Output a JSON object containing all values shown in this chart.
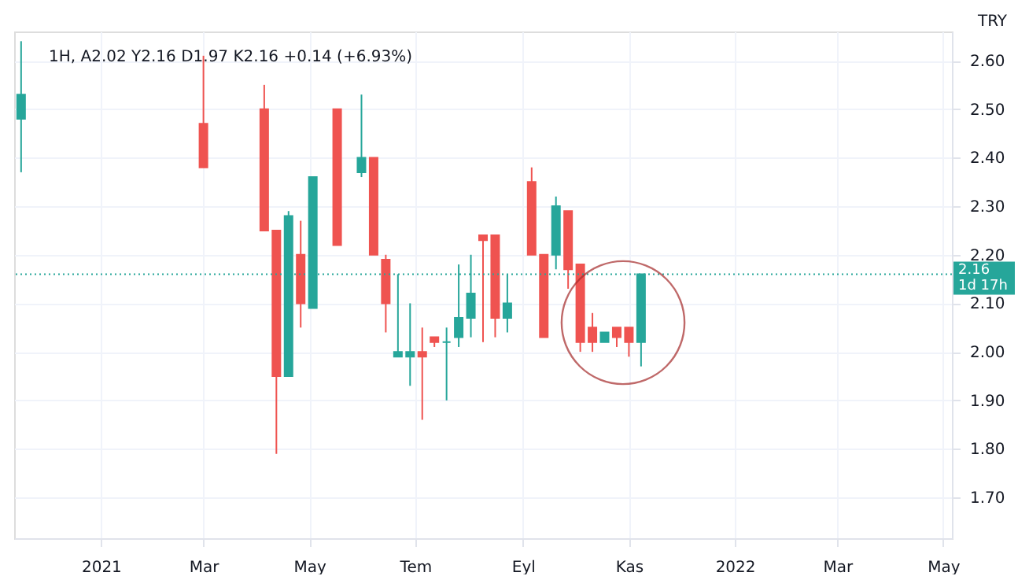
{
  "chart_data": {
    "type": "candlestick",
    "title": "1H, A2.02 Y2.16 D1.97 K2.16 +0.14 (+6.93%)",
    "ylabel": "TRY",
    "x": [
      "2020-11-16",
      "2021-03-01",
      "2021-04-05",
      "2021-04-12",
      "2021-04-19",
      "2021-04-26",
      "2021-05-03",
      "2021-05-17",
      "2021-05-31",
      "2021-06-07",
      "2021-06-14",
      "2021-06-21",
      "2021-06-28",
      "2021-07-05",
      "2021-07-12",
      "2021-07-19",
      "2021-07-26",
      "2021-08-02",
      "2021-08-09",
      "2021-08-16",
      "2021-08-23",
      "2021-09-06",
      "2021-09-13",
      "2021-09-20",
      "2021-09-27",
      "2021-10-04",
      "2021-10-11",
      "2021-10-18",
      "2021-10-25",
      "2021-11-01",
      "2021-11-08"
    ],
    "ohlc": [
      [
        2.48,
        2.64,
        2.37,
        2.53
      ],
      [
        2.47,
        2.61,
        2.38,
        2.38
      ],
      [
        2.5,
        2.55,
        2.25,
        2.25
      ],
      [
        2.25,
        2.25,
        1.79,
        1.95
      ],
      [
        1.95,
        2.29,
        1.95,
        2.28
      ],
      [
        2.2,
        2.27,
        2.05,
        2.1
      ],
      [
        2.09,
        2.36,
        2.09,
        2.36
      ],
      [
        2.5,
        2.5,
        2.22,
        2.22
      ],
      [
        2.37,
        2.53,
        2.36,
        2.4
      ],
      [
        2.4,
        2.4,
        2.2,
        2.2
      ],
      [
        2.19,
        2.2,
        2.04,
        2.1
      ],
      [
        1.99,
        2.16,
        1.99,
        2.0
      ],
      [
        1.99,
        2.1,
        1.93,
        2.0
      ],
      [
        2.0,
        2.05,
        1.86,
        1.99
      ],
      [
        2.03,
        2.03,
        2.01,
        2.02
      ],
      [
        2.02,
        2.05,
        1.9,
        2.02
      ],
      [
        2.03,
        2.18,
        2.01,
        2.07
      ],
      [
        2.07,
        2.2,
        2.03,
        2.12
      ],
      [
        2.24,
        2.24,
        2.02,
        2.23
      ],
      [
        2.24,
        2.24,
        2.03,
        2.07
      ],
      [
        2.07,
        2.16,
        2.04,
        2.1
      ],
      [
        2.35,
        2.38,
        2.2,
        2.2
      ],
      [
        2.2,
        2.2,
        2.03,
        2.03
      ],
      [
        2.2,
        2.32,
        2.17,
        2.3
      ],
      [
        2.29,
        2.29,
        2.13,
        2.17
      ],
      [
        2.18,
        2.18,
        2.0,
        2.02
      ],
      [
        2.05,
        2.08,
        2.0,
        2.02
      ],
      [
        2.02,
        2.04,
        2.02,
        2.04
      ],
      [
        2.05,
        2.05,
        2.01,
        2.03
      ],
      [
        2.05,
        2.05,
        1.99,
        2.02
      ],
      [
        2.02,
        2.16,
        1.97,
        2.16
      ]
    ],
    "colors": [
      "#26a69a",
      "#ef5350",
      "#ef5350",
      "#ef5350",
      "#26a69a",
      "#ef5350",
      "#26a69a",
      "#ef5350",
      "#26a69a",
      "#ef5350",
      "#ef5350",
      "#26a69a",
      "#26a69a",
      "#ef5350",
      "#ef5350",
      "#26a69a",
      "#26a69a",
      "#26a69a",
      "#ef5350",
      "#ef5350",
      "#26a69a",
      "#ef5350",
      "#ef5350",
      "#26a69a",
      "#ef5350",
      "#ef5350",
      "#ef5350",
      "#26a69a",
      "#ef5350",
      "#ef5350",
      "#26a69a"
    ],
    "xlim": [
      "2020-11-12",
      "2022-05-06"
    ],
    "xticks": [
      {
        "value": "2021-01-01",
        "label": "2021"
      },
      {
        "value": "2021-03-01",
        "label": "Mar"
      },
      {
        "value": "2021-05-01",
        "label": "May"
      },
      {
        "value": "2021-07-01",
        "label": "Tem"
      },
      {
        "value": "2021-09-01",
        "label": "Eyl"
      },
      {
        "value": "2021-11-01",
        "label": "Kas"
      },
      {
        "value": "2022-01-01",
        "label": "2022"
      },
      {
        "value": "2022-03-01",
        "label": "Mar"
      },
      {
        "value": "2022-05-01",
        "label": "May"
      }
    ],
    "ylim": [
      1.616,
      2.66
    ],
    "yticks": [
      {
        "value": 1.7,
        "label": "1.70"
      },
      {
        "value": 1.8,
        "label": "1.80"
      },
      {
        "value": 1.9,
        "label": "1.90"
      },
      {
        "value": 2.0,
        "label": "2.00"
      },
      {
        "value": 2.1,
        "label": "2.10"
      },
      {
        "value": 2.2,
        "label": "2.20"
      },
      {
        "value": 2.3,
        "label": "2.30"
      },
      {
        "value": 2.4,
        "label": "2.40"
      },
      {
        "value": 2.5,
        "label": "2.50"
      },
      {
        "value": 2.6,
        "label": "2.60"
      }
    ],
    "ref_lines": [
      {
        "axis": "y",
        "value": 2.16,
        "label": "2.16 1d 17h",
        "color": "#26a69a",
        "line_style": "dotted"
      }
    ],
    "grid": true
  }
}
